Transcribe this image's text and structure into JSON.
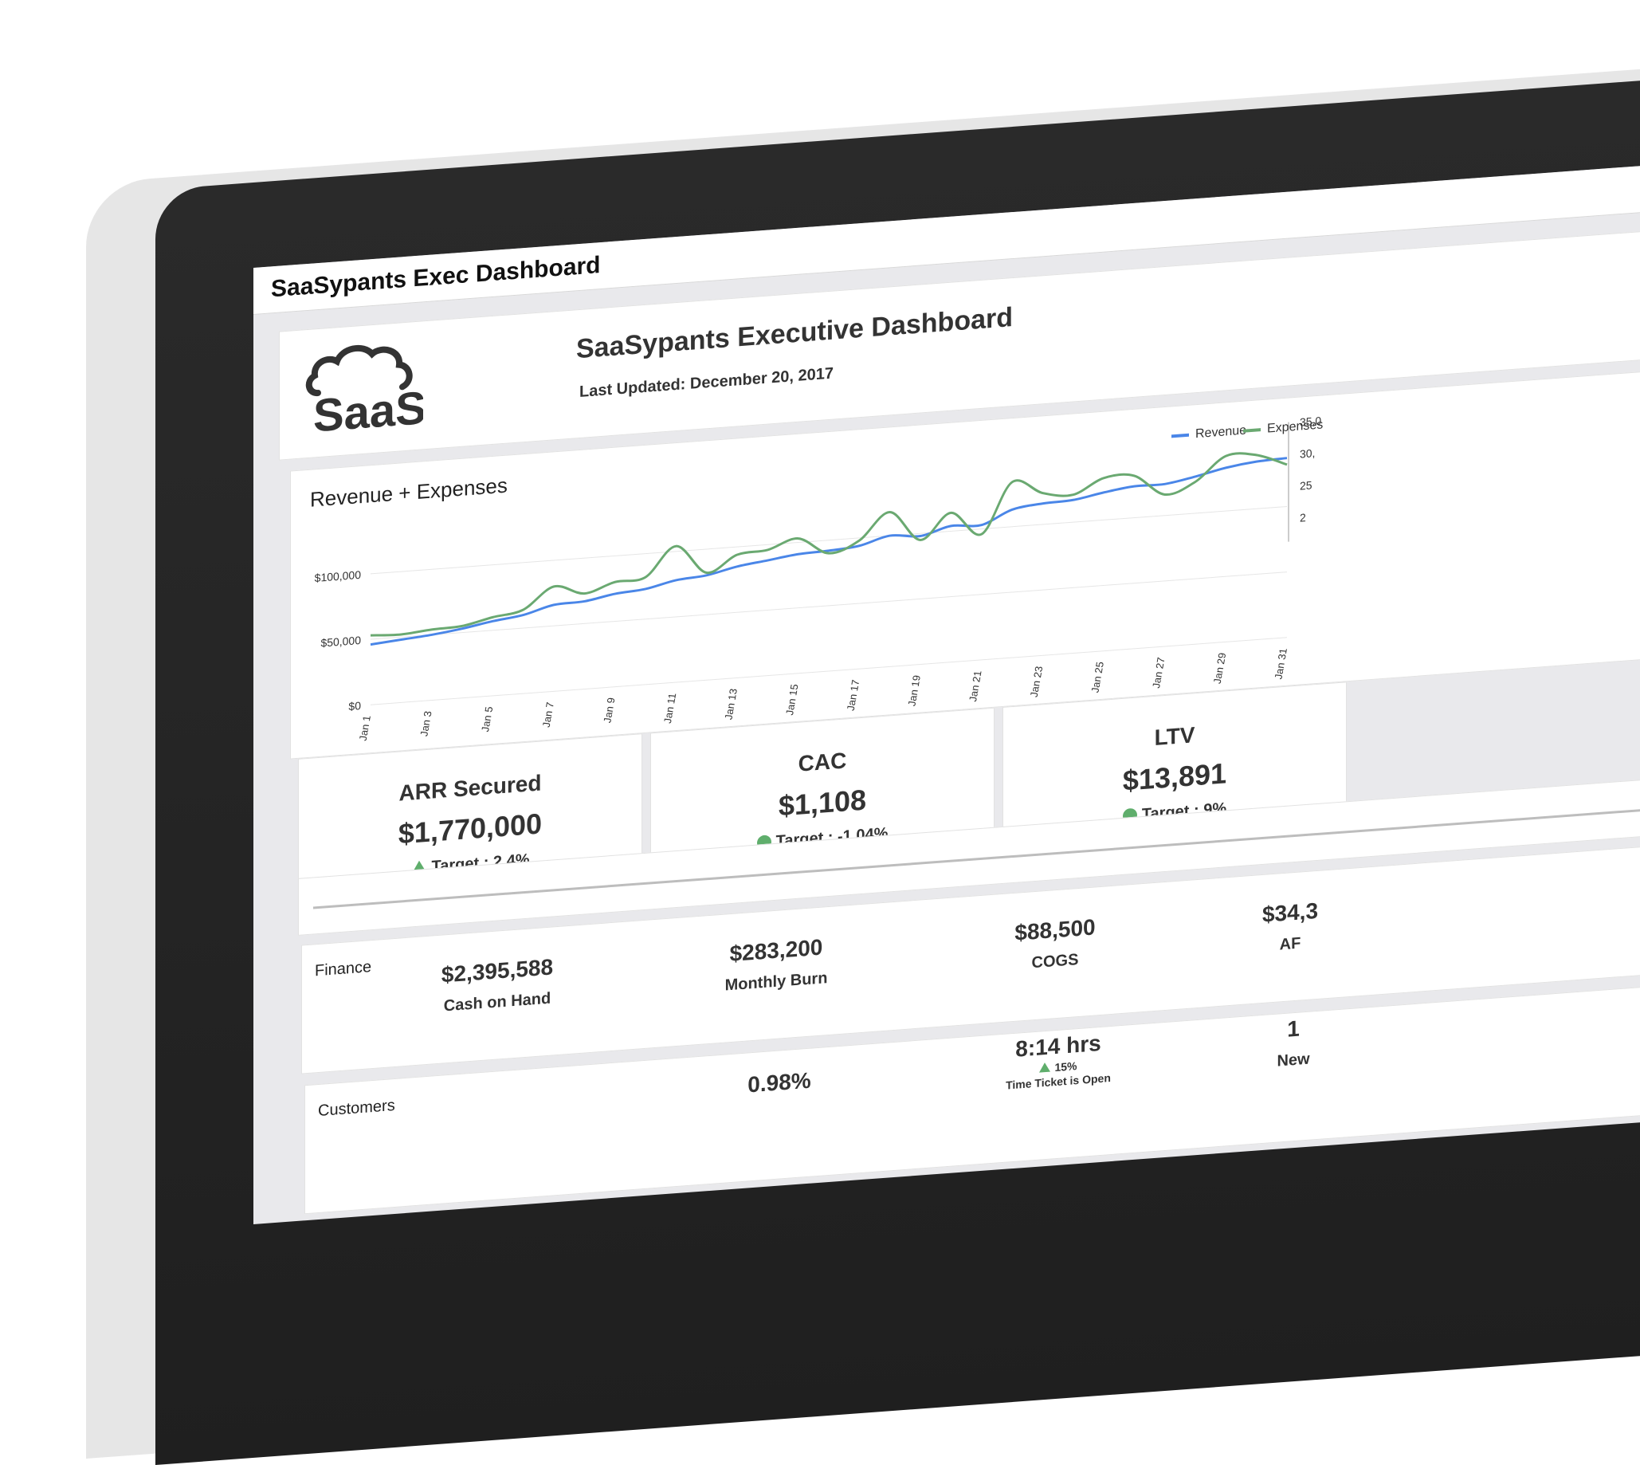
{
  "app": {
    "title": "SaaSypants Exec Dashboard"
  },
  "header": {
    "logo_text": "SaaS",
    "title": "SaaSypants Executive Dashboard",
    "last_updated": "Last Updated: December 20, 2017"
  },
  "colors": {
    "revenue": "#4a86e8",
    "expenses": "#6aa971",
    "target_good": "#5fae6c"
  },
  "chart_data": {
    "type": "line",
    "title": "Revenue + Expenses",
    "x": [
      "Jan 1",
      "Jan 2",
      "Jan 3",
      "Jan 4",
      "Jan 5",
      "Jan 6",
      "Jan 7",
      "Jan 8",
      "Jan 9",
      "Jan 10",
      "Jan 11",
      "Jan 12",
      "Jan 13",
      "Jan 14",
      "Jan 15",
      "Jan 16",
      "Jan 17",
      "Jan 18",
      "Jan 19",
      "Jan 20",
      "Jan 21",
      "Jan 22",
      "Jan 23",
      "Jan 24",
      "Jan 25",
      "Jan 26",
      "Jan 27",
      "Jan 28",
      "Jan 29",
      "Jan 30",
      "Jan 31"
    ],
    "xticks": [
      "Jan 1",
      "Jan 3",
      "Jan 5",
      "Jan 7",
      "Jan 9",
      "Jan 11",
      "Jan 13",
      "Jan 15",
      "Jan 17",
      "Jan 19",
      "Jan 21",
      "Jan 23",
      "Jan 25",
      "Jan 27",
      "Jan 29",
      "Jan 31"
    ],
    "yticks_left": [
      "$0",
      "$50,000",
      "$100,000"
    ],
    "yticks_right": [
      "35,0",
      "30,",
      "25",
      "2"
    ],
    "ylim": [
      0,
      140000
    ],
    "series": [
      {
        "name": "Revenue",
        "values": [
          46000,
          48000,
          50000,
          53000,
          57000,
          60000,
          66000,
          67000,
          71000,
          73000,
          78000,
          80000,
          85000,
          88000,
          91000,
          92000,
          94000,
          100000,
          98000,
          104000,
          103000,
          113000,
          116000,
          117000,
          121000,
          124000,
          124000,
          128000,
          133000,
          136000,
          137000
        ]
      },
      {
        "name": "Expenses",
        "values": [
          53000,
          52000,
          54000,
          55000,
          60000,
          64000,
          80000,
          73000,
          80000,
          82000,
          104000,
          82000,
          94000,
          96000,
          103000,
          90000,
          98000,
          118000,
          95000,
          114000,
          96000,
          134000,
          124000,
          121000,
          132000,
          132000,
          116000,
          124000,
          142000,
          141000,
          132000
        ]
      }
    ],
    "legend": "top-right",
    "grid": true
  },
  "kpis": [
    {
      "title": "ARR Secured",
      "value": "$1,770,000",
      "target": "Target : 2.4%",
      "indicator": "triangle-up-icon"
    },
    {
      "title": "CAC",
      "value": "$1,108",
      "target": "Target : -1.04%",
      "indicator": "circle-icon"
    },
    {
      "title": "LTV",
      "value": "$13,891",
      "target": "Target : 9%",
      "indicator": "circle-icon"
    }
  ],
  "finance": {
    "label": "Finance",
    "metrics": [
      {
        "value": "$2,395,588",
        "label": "Cash on Hand"
      },
      {
        "value": "$283,200",
        "label": "Monthly Burn"
      },
      {
        "value": "$88,500",
        "label": "COGS"
      },
      {
        "value": "$34,3",
        "label": "AF"
      }
    ]
  },
  "customers": {
    "label": "Customers",
    "metrics": [
      {
        "value": "0.98%",
        "label": ""
      },
      {
        "value": "8:14 hrs",
        "sub": "15%",
        "label": "Time Ticket is Open"
      },
      {
        "value": "1",
        "label": "New"
      }
    ]
  }
}
